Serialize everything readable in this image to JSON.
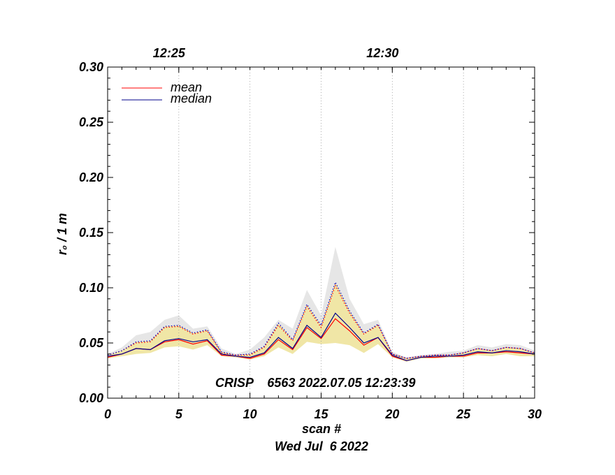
{
  "chart_data": {
    "type": "line",
    "ylabel": "r₀ / 1 m",
    "xlabel": "scan #",
    "date_label": "Wed Jul  6 2022",
    "annotation": "CRISP    6563 2022.07.05 12:23:39",
    "xlim": [
      0,
      30
    ],
    "ylim": [
      0,
      0.3
    ],
    "x_ticks": [
      "0",
      "5",
      "10",
      "15",
      "20",
      "25",
      "30"
    ],
    "y_ticks": [
      "0.00",
      "0.05",
      "0.10",
      "0.15",
      "0.20",
      "0.25",
      "0.30"
    ],
    "top_axis_ticks": [
      {
        "scan": 5,
        "label": "12:25"
      },
      {
        "scan": 20,
        "label": "12:30"
      }
    ],
    "grid": "vertical dotted lines at 12:25 and 12:30 and every 5 scans",
    "legend": {
      "placement": "top-left",
      "entries": [
        {
          "name": "mean",
          "color": "#ff0000"
        },
        {
          "name": "median",
          "color": "#00008b"
        }
      ]
    },
    "x": [
      0,
      1,
      2,
      3,
      4,
      5,
      6,
      7,
      8,
      9,
      10,
      11,
      12,
      13,
      14,
      15,
      16,
      17,
      18,
      19,
      20,
      21,
      22,
      23,
      24,
      25,
      26,
      27,
      28,
      29,
      30
    ],
    "series": [
      {
        "name": "mean",
        "color": "#ff0000",
        "style": "solid",
        "values": [
          0.037,
          0.04,
          0.045,
          0.044,
          0.051,
          0.053,
          0.049,
          0.052,
          0.039,
          0.038,
          0.036,
          0.04,
          0.053,
          0.044,
          0.064,
          0.054,
          0.072,
          0.061,
          0.048,
          0.055,
          0.038,
          0.034,
          0.037,
          0.037,
          0.038,
          0.038,
          0.041,
          0.041,
          0.042,
          0.041,
          0.04
        ]
      },
      {
        "name": "median",
        "color": "#00008b",
        "style": "solid",
        "values": [
          0.038,
          0.04,
          0.045,
          0.044,
          0.052,
          0.054,
          0.051,
          0.053,
          0.04,
          0.038,
          0.037,
          0.041,
          0.055,
          0.045,
          0.066,
          0.055,
          0.077,
          0.064,
          0.05,
          0.055,
          0.039,
          0.034,
          0.037,
          0.038,
          0.038,
          0.039,
          0.042,
          0.041,
          0.043,
          0.042,
          0.04
        ]
      },
      {
        "name": "",
        "color": "#0000cd",
        "style": "dotted",
        "values": [
          0.039,
          0.043,
          0.051,
          0.052,
          0.065,
          0.066,
          0.059,
          0.062,
          0.042,
          0.039,
          0.04,
          0.047,
          0.068,
          0.053,
          0.085,
          0.066,
          0.105,
          0.079,
          0.059,
          0.067,
          0.04,
          0.036,
          0.038,
          0.039,
          0.039,
          0.041,
          0.045,
          0.043,
          0.046,
          0.045,
          0.041
        ]
      },
      {
        "name": "",
        "color": "#ff0000",
        "style": "dotted",
        "values": [
          0.039,
          0.043,
          0.05,
          0.051,
          0.064,
          0.065,
          0.058,
          0.061,
          0.041,
          0.039,
          0.039,
          0.046,
          0.066,
          0.052,
          0.083,
          0.064,
          0.102,
          0.077,
          0.058,
          0.066,
          0.04,
          0.036,
          0.038,
          0.039,
          0.039,
          0.041,
          0.045,
          0.043,
          0.046,
          0.045,
          0.041
        ]
      }
    ],
    "bands": [
      {
        "color": "#e6e6e6",
        "upper": [
          0.04,
          0.046,
          0.057,
          0.06,
          0.071,
          0.075,
          0.063,
          0.065,
          0.045,
          0.04,
          0.044,
          0.055,
          0.071,
          0.063,
          0.098,
          0.075,
          0.137,
          0.09,
          0.067,
          0.071,
          0.042,
          0.037,
          0.039,
          0.04,
          0.042,
          0.043,
          0.048,
          0.046,
          0.049,
          0.048,
          0.043
        ],
        "lower": [
          0.039,
          0.043,
          0.051,
          0.052,
          0.065,
          0.066,
          0.059,
          0.062,
          0.042,
          0.039,
          0.04,
          0.047,
          0.068,
          0.053,
          0.085,
          0.066,
          0.105,
          0.079,
          0.059,
          0.067,
          0.04,
          0.036,
          0.038,
          0.039,
          0.039,
          0.041,
          0.045,
          0.043,
          0.046,
          0.045,
          0.041
        ]
      },
      {
        "color": "#f0e6a6",
        "upper": [
          0.039,
          0.043,
          0.051,
          0.052,
          0.065,
          0.066,
          0.059,
          0.062,
          0.042,
          0.039,
          0.04,
          0.047,
          0.068,
          0.053,
          0.085,
          0.066,
          0.105,
          0.079,
          0.059,
          0.067,
          0.04,
          0.036,
          0.038,
          0.039,
          0.039,
          0.041,
          0.045,
          0.043,
          0.046,
          0.045,
          0.041
        ],
        "lower": [
          0.036,
          0.038,
          0.04,
          0.041,
          0.046,
          0.047,
          0.044,
          0.048,
          0.038,
          0.037,
          0.035,
          0.038,
          0.046,
          0.04,
          0.051,
          0.049,
          0.05,
          0.048,
          0.041,
          0.049,
          0.037,
          0.033,
          0.036,
          0.036,
          0.037,
          0.037,
          0.039,
          0.038,
          0.04,
          0.038,
          0.038
        ]
      }
    ]
  }
}
